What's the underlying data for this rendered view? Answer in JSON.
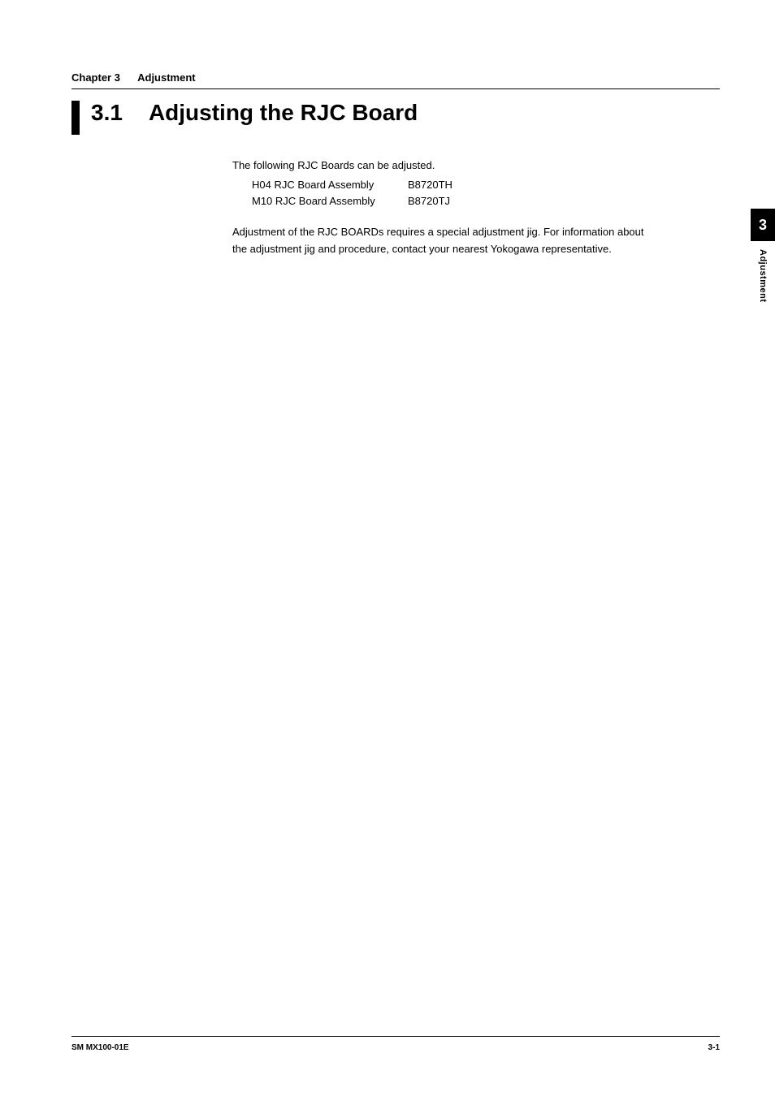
{
  "header": {
    "chapter_label": "Chapter 3",
    "chapter_title": "Adjustment"
  },
  "section": {
    "number": "3.1",
    "title": "Adjusting the RJC Board"
  },
  "body": {
    "intro": "The following RJC Boards can be adjusted.",
    "boards": [
      {
        "name": "H04 RJC Board Assembly",
        "code": "B8720TH"
      },
      {
        "name": "M10 RJC Board Assembly",
        "code": "B8720TJ"
      }
    ],
    "note_line1": "Adjustment of the RJC BOARDs requires a special adjustment jig. For information about",
    "note_line2": "the adjustment jig and procedure, contact your nearest Yokogawa representative."
  },
  "side_tab": {
    "number": "3",
    "label": "Adjustment"
  },
  "footer": {
    "left": "SM MX100-01E",
    "right": "3-1"
  },
  "colors": {
    "background": "#ffffff",
    "text": "#000000",
    "tab_bg": "#000000",
    "tab_text": "#ffffff"
  },
  "typography": {
    "body_fontsize": 13,
    "heading_fontsize": 28,
    "chapter_fontsize": 13,
    "footer_fontsize": 10,
    "sidetab_number_fontsize": 18,
    "sidetab_label_fontsize": 11
  }
}
